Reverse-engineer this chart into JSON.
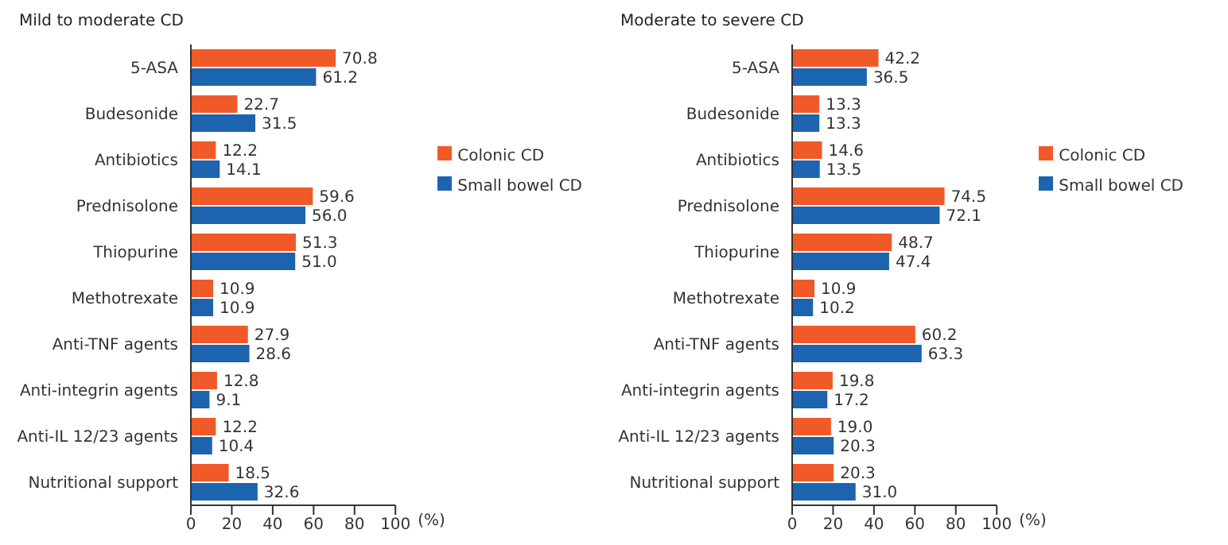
{
  "chart_data": [
    {
      "type": "bar",
      "orientation": "horizontal",
      "title": "Mild to moderate CD",
      "xlabel": "(%)",
      "categories": [
        "5-ASA",
        "Budesonide",
        "Antibiotics",
        "Prednisolone",
        "Thiopurine",
        "Methotrexate",
        "Anti-TNF agents",
        "Anti-integrin agents",
        "Anti-IL 12/23 agents",
        "Nutritional support"
      ],
      "series": [
        {
          "name": "Colonic CD",
          "color": "#f05a28",
          "values": [
            70.8,
            22.7,
            12.2,
            59.6,
            51.3,
            10.9,
            27.9,
            12.8,
            12.2,
            18.5
          ],
          "value_labels": [
            "70.8",
            "22.7",
            "12.2",
            "59.6",
            "51.3",
            "10.9",
            "27.9",
            "12.8",
            "12.2",
            "18.5"
          ]
        },
        {
          "name": "Small bowel CD",
          "color": "#1c64b0",
          "values": [
            61.2,
            31.5,
            14.1,
            56.0,
            51.0,
            10.9,
            28.6,
            9.1,
            10.4,
            32.6
          ],
          "value_labels": [
            "61.2",
            "31.5",
            "14.1",
            "56.0",
            "51.0",
            "10.9",
            "28.6",
            "9.1",
            "10.4",
            "32.6"
          ]
        }
      ],
      "xlim": [
        0,
        100
      ],
      "xticks": [
        0,
        20,
        40,
        60,
        80,
        100
      ],
      "grid": false,
      "legend": "right"
    },
    {
      "type": "bar",
      "orientation": "horizontal",
      "title": "Moderate to severe CD",
      "xlabel": "(%)",
      "categories": [
        "5-ASA",
        "Budesonide",
        "Antibiotics",
        "Prednisolone",
        "Thiopurine",
        "Methotrexate",
        "Anti-TNF agents",
        "Anti-integrin agents",
        "Anti-IL 12/23 agents",
        "Nutritional support"
      ],
      "series": [
        {
          "name": "Colonic CD",
          "color": "#f05a28",
          "values": [
            42.2,
            13.3,
            14.6,
            74.5,
            48.7,
            10.9,
            60.2,
            19.8,
            19.0,
            20.3
          ],
          "value_labels": [
            "42.2",
            "13.3",
            "14.6",
            "74.5",
            "48.7",
            "10.9",
            "60.2",
            "19.8",
            "19.0",
            "20.3"
          ]
        },
        {
          "name": "Small bowel CD",
          "color": "#1c64b0",
          "values": [
            36.5,
            13.3,
            13.5,
            72.1,
            47.4,
            10.2,
            63.3,
            17.2,
            20.3,
            31.0
          ],
          "value_labels": [
            "36.5",
            "13.3",
            "13.5",
            "72.1",
            "47.4",
            "10.2",
            "63.3",
            "17.2",
            "20.3",
            "31.0"
          ]
        }
      ],
      "xlim": [
        0,
        100
      ],
      "xticks": [
        0,
        20,
        40,
        60,
        80,
        100
      ],
      "grid": false,
      "legend": "right"
    }
  ]
}
